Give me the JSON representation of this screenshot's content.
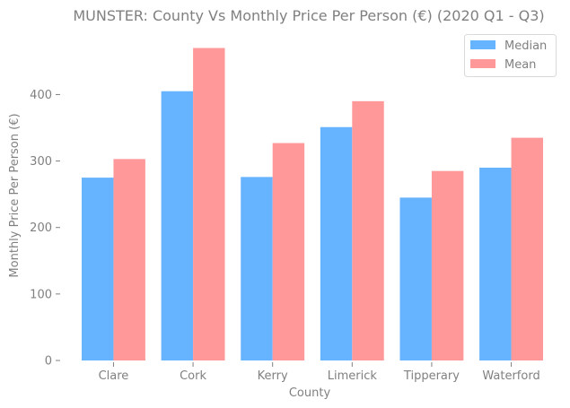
{
  "chart_data": {
    "type": "bar",
    "title": "MUNSTER: County Vs Monthly Price Per Person (€) (2020 Q1 - Q3)",
    "xlabel": "County",
    "ylabel": "Monthly Price Per Person (€)",
    "categories": [
      "Clare",
      "Cork",
      "Kerry",
      "Limerick",
      "Tipperary",
      "Waterford"
    ],
    "series": [
      {
        "name": "Median",
        "color": "#66b3ff",
        "values": [
          275,
          405,
          276,
          351,
          245,
          290
        ]
      },
      {
        "name": "Mean",
        "color": "#ff9999",
        "values": [
          303,
          470,
          327,
          390,
          285,
          335
        ]
      }
    ],
    "ylim": [
      0,
      495
    ],
    "yticks": [
      0,
      100,
      200,
      300,
      400
    ],
    "grid": false,
    "legend_position": "top-right"
  }
}
